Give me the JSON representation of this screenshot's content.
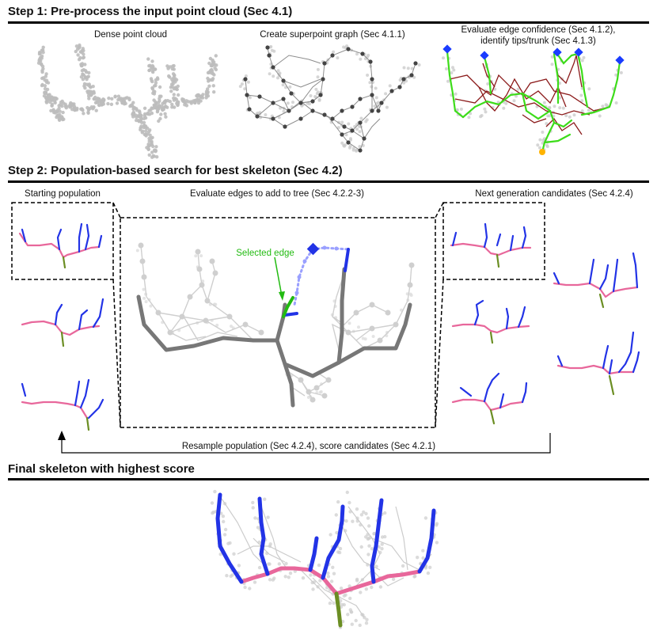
{
  "step1": {
    "title": "Step 1: Pre-process the input point cloud (Sec 4.1)",
    "panel_dense": "Dense point cloud",
    "panel_superpoint": "Create superpoint graph (Sec 4.1.1)",
    "panel_confidence_line1": "Evaluate edge confidence (Sec 4.1.2),",
    "panel_confidence_line2": "identify tips/trunk (Sec 4.1.3)"
  },
  "step2": {
    "title": "Step 2: Population-based search for best skeleton (Sec 4.2)",
    "starting_population": "Starting population",
    "evaluate_edges": "Evaluate edges to add to tree (Sec 4.2.2-3)",
    "next_generation": "Next generation candidates (Sec 4.2.4)",
    "selected_edge": "Selected edge",
    "resample": "Resample population (Sec 4.2.4), score candidates (Sec 4.2.1)"
  },
  "step3": {
    "title": "Final skeleton with highest score"
  },
  "colors": {
    "point_cloud": "#bdbdbd",
    "graph_edge": "#8c8c8c",
    "graph_node": "#444444",
    "low_confidence_edge": "#8b1a1a",
    "high_confidence_edge": "#3ddc1a",
    "tip": "#1a3cff",
    "trunk_marker": "#ffb300",
    "leader": "#e8679b",
    "branch": "#2233e6",
    "trunk": "#6b8e23",
    "tree_edge": "#777777",
    "candidate_edge": "#9aa0ff",
    "selected_edge": "#22bb11"
  }
}
